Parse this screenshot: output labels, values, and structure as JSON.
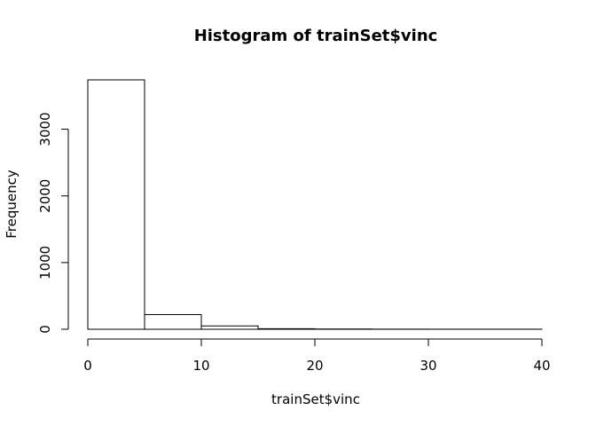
{
  "chart_data": {
    "type": "bar",
    "title": "Histogram of trainSet$vinc",
    "xlabel": "trainSet$vinc",
    "ylabel": "Frequency",
    "bins": [
      {
        "start": 0,
        "end": 5,
        "count": 3740
      },
      {
        "start": 5,
        "end": 10,
        "count": 220
      },
      {
        "start": 10,
        "end": 15,
        "count": 50
      },
      {
        "start": 15,
        "end": 20,
        "count": 8
      },
      {
        "start": 20,
        "end": 25,
        "count": 4
      },
      {
        "start": 25,
        "end": 30,
        "count": 2
      },
      {
        "start": 30,
        "end": 35,
        "count": 1
      },
      {
        "start": 35,
        "end": 40,
        "count": 1
      }
    ],
    "xlim": [
      0,
      40
    ],
    "ylim": [
      0,
      3740
    ],
    "xticks": [
      0,
      10,
      20,
      30,
      40
    ],
    "yticks": [
      0,
      1000,
      2000,
      3000
    ],
    "grid": false,
    "legend": "none"
  }
}
